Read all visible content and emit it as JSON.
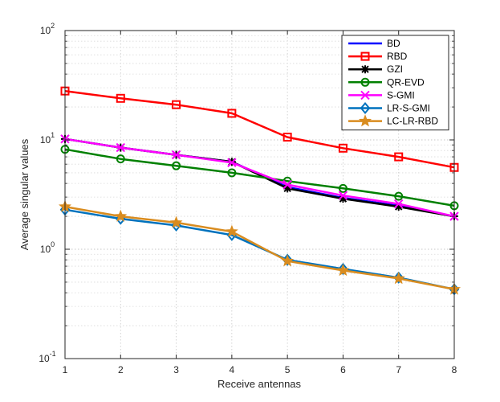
{
  "chart_data": {
    "type": "line",
    "title": "",
    "xlabel": "Receive antennas",
    "ylabel": "Average singular values",
    "x": [
      1,
      2,
      3,
      4,
      5,
      6,
      7,
      8
    ],
    "xlim": [
      1,
      8
    ],
    "ylim": [
      0.1,
      100
    ],
    "yscale": "log",
    "x_ticks": [
      "1",
      "2",
      "3",
      "4",
      "5",
      "6",
      "7",
      "8"
    ],
    "y_ticks": [
      {
        "value": 0.1,
        "base": "10",
        "exp": "-1"
      },
      {
        "value": 1,
        "base": "10",
        "exp": "0"
      },
      {
        "value": 10,
        "base": "10",
        "exp": "1"
      },
      {
        "value": 100,
        "base": "10",
        "exp": "2"
      }
    ],
    "grid": true,
    "legend_position": "top-right",
    "series": [
      {
        "name": "BD",
        "color": "#0000ff",
        "marker": "none",
        "values": [
          10.2,
          8.5,
          7.3,
          6.3,
          3.7,
          2.95,
          2.5,
          2.0
        ]
      },
      {
        "name": "RBD",
        "color": "#ff0000",
        "marker": "square",
        "values": [
          28.0,
          24.0,
          21.0,
          17.5,
          10.6,
          8.4,
          7.0,
          5.6
        ]
      },
      {
        "name": "GZI",
        "color": "#000000",
        "marker": "asterisk",
        "values": [
          10.2,
          8.5,
          7.3,
          6.3,
          3.6,
          2.9,
          2.45,
          2.0
        ]
      },
      {
        "name": "QR-EVD",
        "color": "#008000",
        "marker": "circle",
        "values": [
          8.2,
          6.7,
          5.8,
          5.0,
          4.2,
          3.6,
          3.05,
          2.5
        ]
      },
      {
        "name": "S-GMI",
        "color": "#ff00ff",
        "marker": "x",
        "values": [
          10.2,
          8.5,
          7.3,
          6.2,
          3.9,
          3.1,
          2.6,
          2.0
        ]
      },
      {
        "name": "LR-S-GMI",
        "color": "#0072bd",
        "marker": "diamond",
        "values": [
          2.3,
          1.9,
          1.65,
          1.35,
          0.8,
          0.66,
          0.55,
          0.43
        ]
      },
      {
        "name": "LC-LR-RBD",
        "color": "#d98c1f",
        "marker": "star",
        "values": [
          2.45,
          2.0,
          1.75,
          1.45,
          0.78,
          0.64,
          0.54,
          0.43
        ]
      }
    ]
  }
}
